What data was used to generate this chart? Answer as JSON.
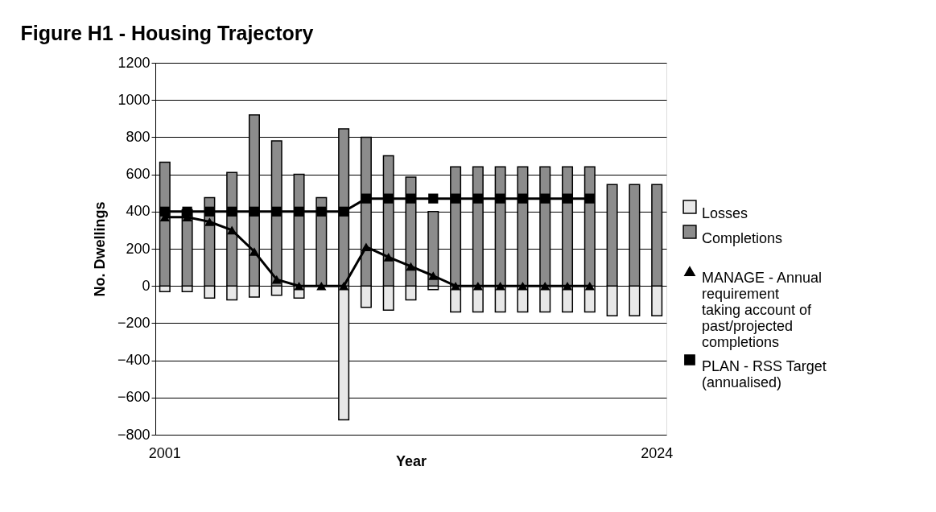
{
  "chart_data": {
    "type": "bar",
    "title": "Figure H1 - Housing Trajectory",
    "xlabel": "Year",
    "ylabel": "No. Dwellings",
    "categories": [
      "2001",
      null,
      null,
      null,
      null,
      null,
      null,
      null,
      null,
      null,
      null,
      null,
      null,
      null,
      null,
      null,
      null,
      null,
      null,
      null,
      null,
      null,
      "2024"
    ],
    "series": [
      {
        "name": "Losses",
        "color": "#e8e8e8",
        "values": [
          -30,
          -30,
          -65,
          -75,
          -60,
          -50,
          -65,
          null,
          -720,
          -115,
          -130,
          -75,
          -20,
          -140,
          -140,
          -140,
          -140,
          -140,
          -140,
          -140,
          -160,
          -160,
          -160
        ]
      },
      {
        "name": "Completions",
        "color": "#8c8c8c",
        "values": [
          665,
          410,
          475,
          610,
          920,
          780,
          600,
          475,
          845,
          800,
          700,
          585,
          400,
          640,
          640,
          640,
          640,
          640,
          640,
          640,
          545,
          545,
          545
        ]
      },
      {
        "name": "MANAGE - Annual requirement taking account of past/projected completions",
        "type": "line",
        "color": "#000000",
        "marker": "triangle",
        "values": [
          370,
          370,
          345,
          300,
          185,
          35,
          0,
          0,
          0,
          210,
          155,
          105,
          55,
          0,
          0,
          0,
          0,
          0,
          0,
          0,
          null,
          null,
          null
        ]
      },
      {
        "name": "PLAN - RSS Target (annualised)",
        "type": "line",
        "color": "#000000",
        "marker": "square",
        "values": [
          400,
          400,
          400,
          400,
          400,
          400,
          400,
          400,
          400,
          470,
          470,
          470,
          470,
          470,
          470,
          470,
          470,
          470,
          470,
          470,
          null,
          null,
          null
        ]
      }
    ],
    "ylim": [
      -800,
      1200
    ],
    "yticks": [
      -800,
      -600,
      -400,
      -200,
      0,
      200,
      400,
      600,
      800,
      1000,
      1200
    ],
    "grid": "y",
    "legend": "right",
    "stacked": true
  }
}
